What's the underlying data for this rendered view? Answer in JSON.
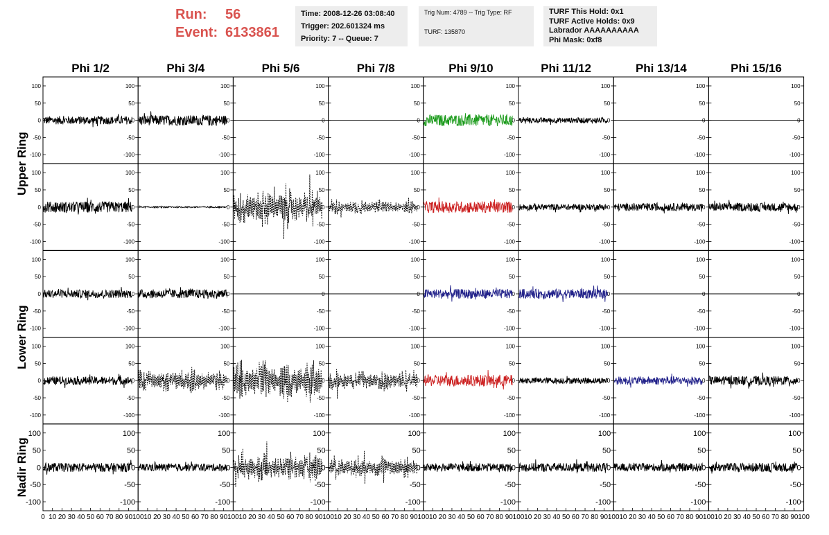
{
  "run_label": "Run:",
  "run_value": "56",
  "event_label": "Event:",
  "event_value": "6133861",
  "info": {
    "time": "Time: 2008-12-26 03:08:40",
    "trigger": "Trigger: 202.601324 ms",
    "priority": "Priority: 7 -- Queue: 7",
    "trig": "Trig Num: 4789 -- Trig Type: RF",
    "turf": "TURF: 135870",
    "hold": "TURF This Hold: 0x1",
    "active": "TURF Active Holds: 0x9",
    "labrador": "Labrador AAAAAAAAAA",
    "phimask": "Phi Mask: 0xf8"
  },
  "chart_data": {
    "type": "line",
    "columns": [
      "Phi 1/2",
      "Phi 3/4",
      "Phi 5/6",
      "Phi 7/8",
      "Phi 9/10",
      "Phi 11/12",
      "Phi 13/14",
      "Phi 15/16"
    ],
    "ring_labels": [
      {
        "label": "Upper Ring",
        "rows": [
          0,
          1
        ]
      },
      {
        "label": "Lower Ring",
        "rows": [
          2,
          3
        ]
      },
      {
        "label": "Nadir Ring",
        "rows": [
          4
        ]
      }
    ],
    "xlim": [
      0,
      100
    ],
    "ylim": [
      -110,
      110
    ],
    "x_ticks": [
      0,
      10,
      20,
      30,
      40,
      50,
      60,
      70,
      80,
      90,
      100
    ],
    "y_ticks": [
      -100,
      -50,
      0,
      50,
      100
    ],
    "colors": {
      "black": "#000000",
      "green": "#1a9a1a",
      "red": "#cc2222",
      "blue": "#22228a"
    },
    "panels": [
      [
        {
          "a": 12,
          "s": "solid",
          "c": "black"
        },
        {
          "a": 15,
          "s": "solid",
          "c": "black"
        },
        {
          "a": 0,
          "s": "solid",
          "c": "black"
        },
        {
          "a": 0,
          "s": "solid",
          "c": "black"
        },
        {
          "a": 17,
          "s": "solid",
          "c": "green"
        },
        {
          "a": 8,
          "s": "solid",
          "c": "black"
        },
        {
          "a": 0,
          "s": "solid",
          "c": "black"
        },
        {
          "a": 0,
          "s": "solid",
          "c": "black"
        }
      ],
      [
        {
          "a": 16,
          "s": "solid",
          "c": "black"
        },
        {
          "a": 2,
          "s": "solid",
          "c": "black"
        },
        {
          "a": 40,
          "s": "dashed",
          "c": "black"
        },
        {
          "a": 15,
          "s": "dashed",
          "c": "black"
        },
        {
          "a": 17,
          "s": "solid",
          "c": "red"
        },
        {
          "a": 9,
          "s": "solid",
          "c": "black"
        },
        {
          "a": 11,
          "s": "solid",
          "c": "black"
        },
        {
          "a": 12,
          "s": "solid",
          "c": "black"
        }
      ],
      [
        {
          "a": 12,
          "s": "solid",
          "c": "black"
        },
        {
          "a": 13,
          "s": "solid",
          "c": "black"
        },
        {
          "a": 0,
          "s": "solid",
          "c": "black"
        },
        {
          "a": 0,
          "s": "solid",
          "c": "black"
        },
        {
          "a": 14,
          "s": "solid",
          "c": "blue"
        },
        {
          "a": 14,
          "s": "solid",
          "c": "blue"
        },
        {
          "a": 0,
          "s": "solid",
          "c": "black"
        },
        {
          "a": 0,
          "s": "solid",
          "c": "black"
        }
      ],
      [
        {
          "a": 12,
          "s": "solid",
          "c": "black"
        },
        {
          "a": 25,
          "s": "dashed",
          "c": "black"
        },
        {
          "a": 40,
          "s": "dashed",
          "c": "black"
        },
        {
          "a": 22,
          "s": "dashed",
          "c": "black"
        },
        {
          "a": 17,
          "s": "solid",
          "c": "red"
        },
        {
          "a": 9,
          "s": "solid",
          "c": "black"
        },
        {
          "a": 12,
          "s": "solid",
          "c": "blue"
        },
        {
          "a": 13,
          "s": "solid",
          "c": "black"
        }
      ],
      [
        {
          "a": 13,
          "s": "solid",
          "c": "black"
        },
        {
          "a": 11,
          "s": "solid",
          "c": "black"
        },
        {
          "a": 32,
          "s": "dashed",
          "c": "black"
        },
        {
          "a": 24,
          "s": "dashed",
          "c": "black"
        },
        {
          "a": 12,
          "s": "solid",
          "c": "black"
        },
        {
          "a": 13,
          "s": "solid",
          "c": "black"
        },
        {
          "a": 12,
          "s": "solid",
          "c": "black"
        },
        {
          "a": 13,
          "s": "solid",
          "c": "black"
        }
      ]
    ]
  }
}
